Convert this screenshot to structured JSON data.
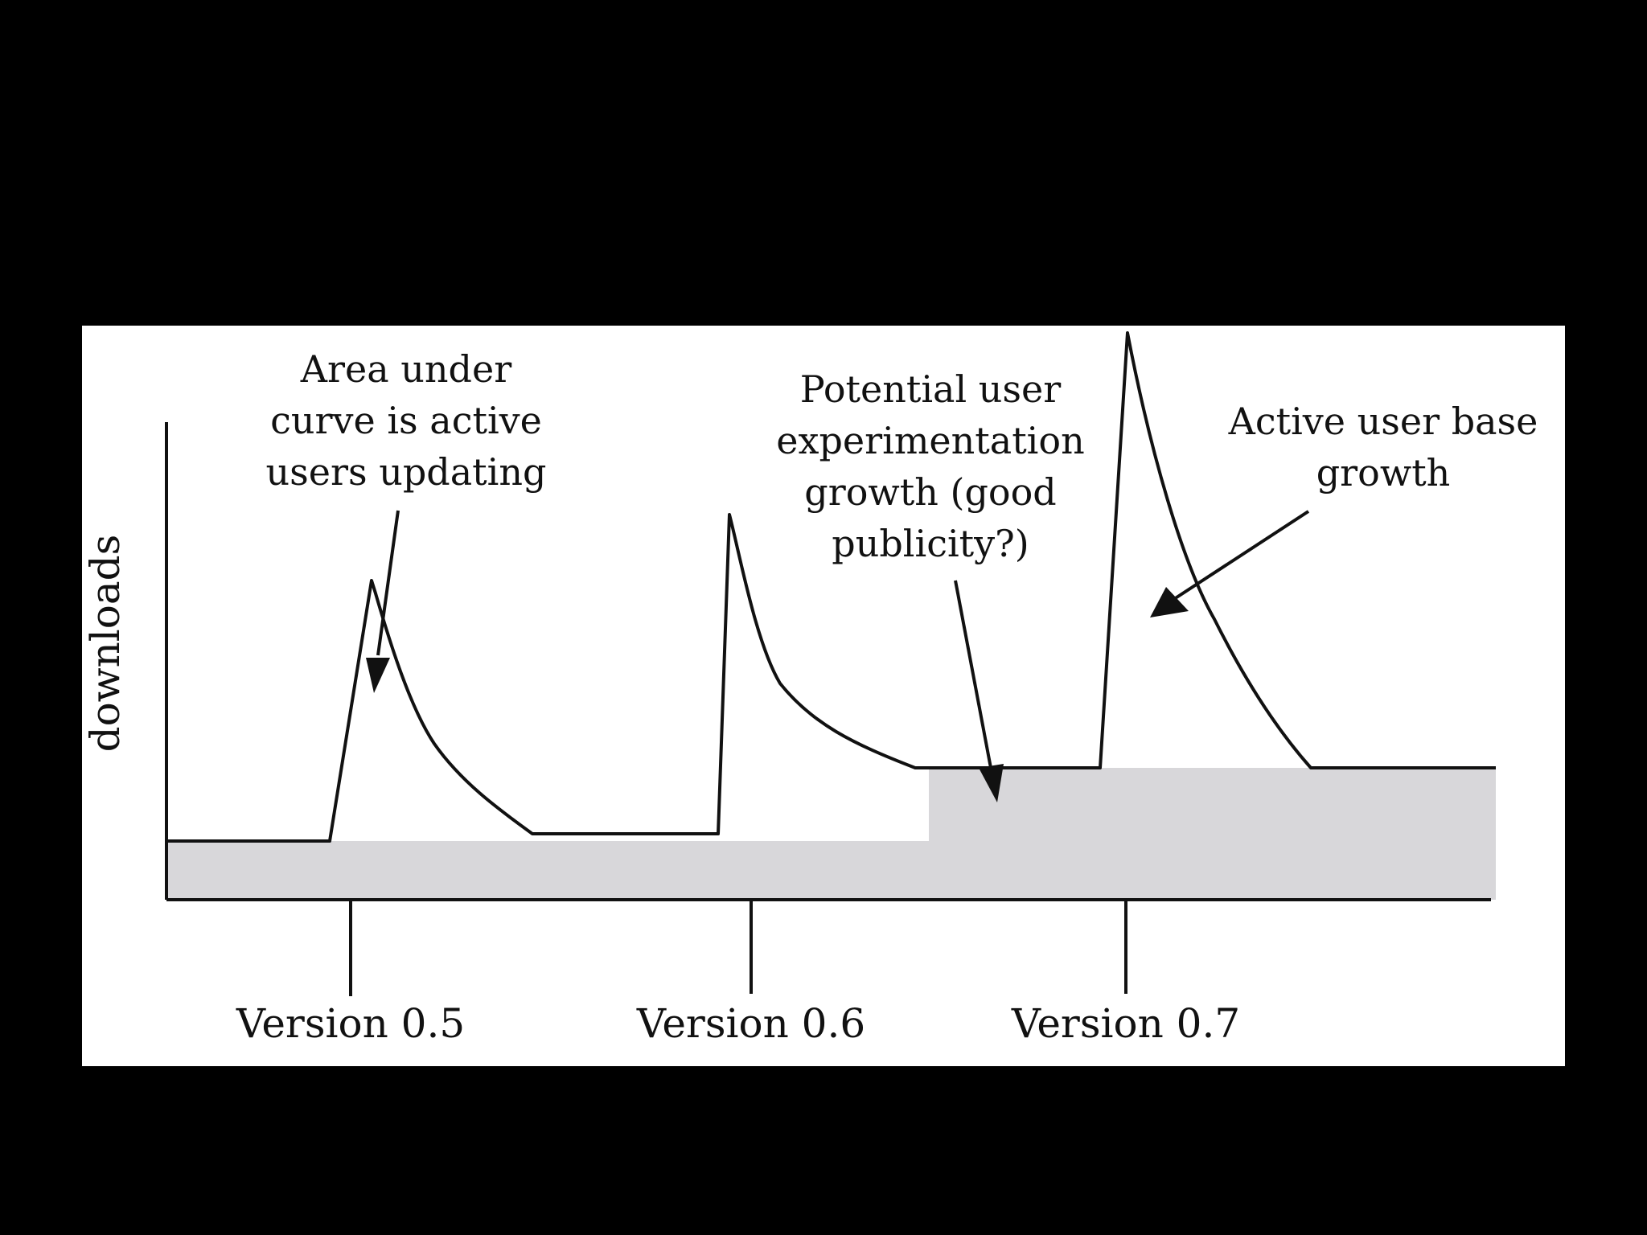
{
  "figure": {
    "y_axis_label": "downloads",
    "annotations": {
      "area_under_curve": [
        "Area under",
        "curve is active",
        "users updating"
      ],
      "potential_growth": [
        "Potential user",
        "experimentation",
        "growth (good",
        "publicity?)"
      ],
      "active_base_growth": [
        "Active user base",
        "growth"
      ]
    },
    "versions": [
      "Version 0.5",
      "Version 0.6",
      "Version 0.7"
    ],
    "colors": {
      "background": "#000000",
      "panel": "#ffffff",
      "ink": "#111111",
      "active_user_area": "#d8d7da"
    }
  }
}
